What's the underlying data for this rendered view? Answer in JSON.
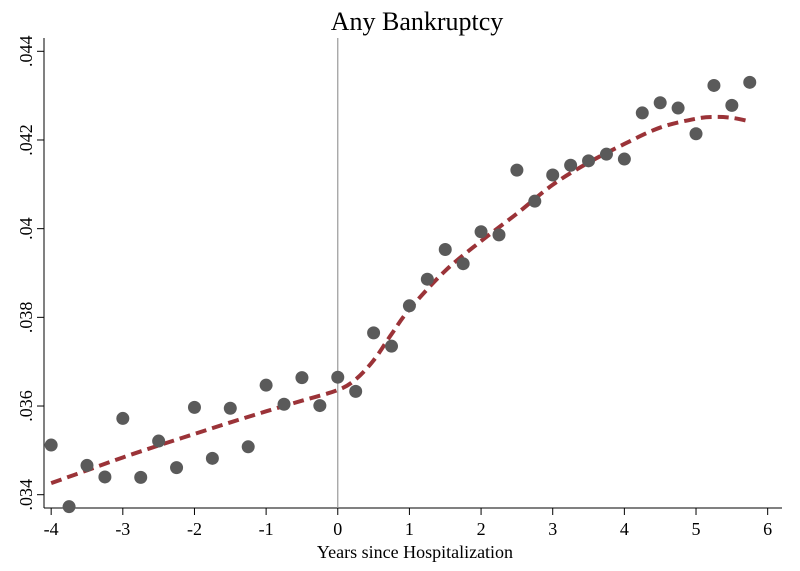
{
  "chart_data": {
    "type": "scatter",
    "title": "Any Bankruptcy",
    "xlabel": "Years since Hospitalization",
    "ylabel": "",
    "xlim": [
      -4.1,
      6.2
    ],
    "ylim": [
      0.0337,
      0.0443
    ],
    "x_ticks": [
      -4,
      -3,
      -2,
      -1,
      0,
      1,
      2,
      3,
      4,
      5,
      6
    ],
    "x_tick_labels": [
      "-4",
      "-3",
      "-2",
      "-1",
      "0",
      "1",
      "2",
      "3",
      "4",
      "5",
      "6"
    ],
    "y_ticks": [
      0.034,
      0.036,
      0.038,
      0.04,
      0.042,
      0.044
    ],
    "y_tick_labels": [
      ".034",
      ".036",
      ".038",
      ".04",
      ".042",
      ".044"
    ],
    "grid": false,
    "reference_line_x": 0,
    "series": [
      {
        "type": "scatter",
        "color": "#5a5a5a",
        "x": [
          -4,
          -3.75,
          -3.5,
          -3.25,
          -3,
          -2.75,
          -2.5,
          -2.25,
          -2,
          -1.75,
          -1.5,
          -1.25,
          -1,
          -0.75,
          -0.5,
          -0.25,
          0,
          0.25,
          0.5,
          0.75,
          1,
          1.25,
          1.5,
          1.75,
          2,
          2.25,
          2.5,
          2.75,
          3,
          3.25,
          3.5,
          3.75,
          4,
          4.25,
          4.5,
          4.75,
          5,
          5.25,
          5.5,
          5.75
        ],
        "y": [
          0.03512,
          0.03373,
          0.03466,
          0.0344,
          0.03572,
          0.03439,
          0.03521,
          0.03461,
          0.03597,
          0.03482,
          0.03595,
          0.03508,
          0.03647,
          0.03604,
          0.03664,
          0.03601,
          0.03665,
          0.03633,
          0.03765,
          0.03735,
          0.03826,
          0.03886,
          0.03953,
          0.03921,
          0.03993,
          0.03986,
          0.04132,
          0.04062,
          0.04121,
          0.04143,
          0.04153,
          0.04168,
          0.04157,
          0.04261,
          0.04284,
          0.04272,
          0.04214,
          0.04323,
          0.04278,
          0.0433
        ]
      },
      {
        "type": "line",
        "style": "dashed",
        "color": "#9b3338",
        "x": [
          -4,
          -3.5,
          -3,
          -2.5,
          -2,
          -1.5,
          -1,
          -0.5,
          0,
          0.25,
          0.5,
          0.75,
          1,
          1.5,
          2,
          2.5,
          3,
          3.5,
          4,
          4.5,
          5,
          5.25,
          5.5,
          5.75
        ],
        "y": [
          0.03426,
          0.03455,
          0.03484,
          0.03511,
          0.03537,
          0.03563,
          0.03588,
          0.03612,
          0.03636,
          0.0366,
          0.03703,
          0.03762,
          0.03818,
          0.03905,
          0.03972,
          0.04034,
          0.04099,
          0.04149,
          0.04191,
          0.04228,
          0.04248,
          0.04252,
          0.0425,
          0.04242
        ]
      }
    ]
  }
}
